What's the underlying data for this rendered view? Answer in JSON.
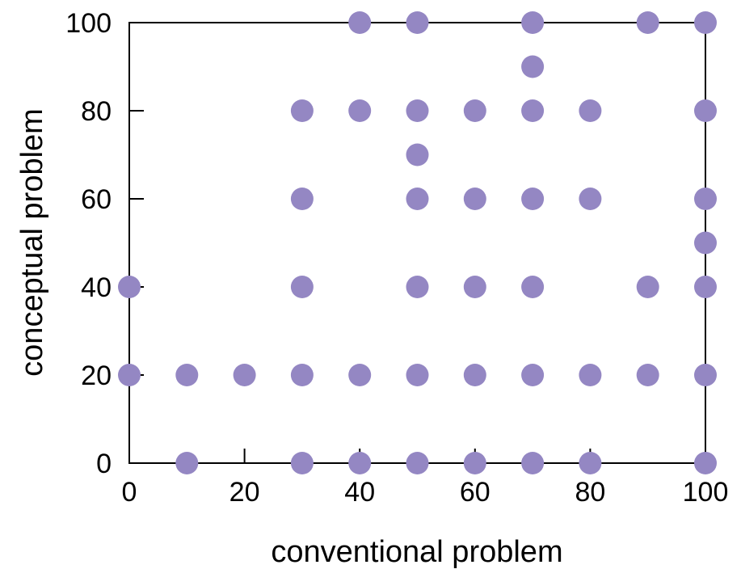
{
  "chart_data": {
    "type": "scatter",
    "xlabel": "conventional problem",
    "ylabel": "conceptual problem",
    "xlim": [
      0,
      100
    ],
    "ylim": [
      0,
      100
    ],
    "xticks": [
      "0",
      "20",
      "40",
      "60",
      "80",
      "100"
    ],
    "yticks": [
      "0",
      "20",
      "40",
      "60",
      "80",
      "100"
    ],
    "grid": false,
    "marker_color": "#9487c3",
    "series": [
      {
        "points": [
          {
            "x": 40,
            "y": 100
          },
          {
            "x": 50,
            "y": 100
          },
          {
            "x": 70,
            "y": 100
          },
          {
            "x": 90,
            "y": 100
          },
          {
            "x": 100,
            "y": 100
          },
          {
            "x": 70,
            "y": 90
          },
          {
            "x": 30,
            "y": 80
          },
          {
            "x": 40,
            "y": 80
          },
          {
            "x": 50,
            "y": 80
          },
          {
            "x": 60,
            "y": 80
          },
          {
            "x": 70,
            "y": 80
          },
          {
            "x": 80,
            "y": 80
          },
          {
            "x": 100,
            "y": 80
          },
          {
            "x": 50,
            "y": 70
          },
          {
            "x": 30,
            "y": 60
          },
          {
            "x": 50,
            "y": 60
          },
          {
            "x": 60,
            "y": 60
          },
          {
            "x": 70,
            "y": 60
          },
          {
            "x": 80,
            "y": 60
          },
          {
            "x": 100,
            "y": 60
          },
          {
            "x": 100,
            "y": 50
          },
          {
            "x": 0,
            "y": 40
          },
          {
            "x": 30,
            "y": 40
          },
          {
            "x": 50,
            "y": 40
          },
          {
            "x": 60,
            "y": 40
          },
          {
            "x": 70,
            "y": 40
          },
          {
            "x": 90,
            "y": 40
          },
          {
            "x": 100,
            "y": 40
          },
          {
            "x": 0,
            "y": 20
          },
          {
            "x": 10,
            "y": 20
          },
          {
            "x": 20,
            "y": 20
          },
          {
            "x": 30,
            "y": 20
          },
          {
            "x": 40,
            "y": 20
          },
          {
            "x": 50,
            "y": 20
          },
          {
            "x": 60,
            "y": 20
          },
          {
            "x": 70,
            "y": 20
          },
          {
            "x": 80,
            "y": 20
          },
          {
            "x": 90,
            "y": 20
          },
          {
            "x": 100,
            "y": 20
          },
          {
            "x": 10,
            "y": 0
          },
          {
            "x": 30,
            "y": 0
          },
          {
            "x": 40,
            "y": 0
          },
          {
            "x": 50,
            "y": 0
          },
          {
            "x": 60,
            "y": 0
          },
          {
            "x": 70,
            "y": 0
          },
          {
            "x": 80,
            "y": 0
          },
          {
            "x": 100,
            "y": 0
          }
        ]
      }
    ]
  }
}
